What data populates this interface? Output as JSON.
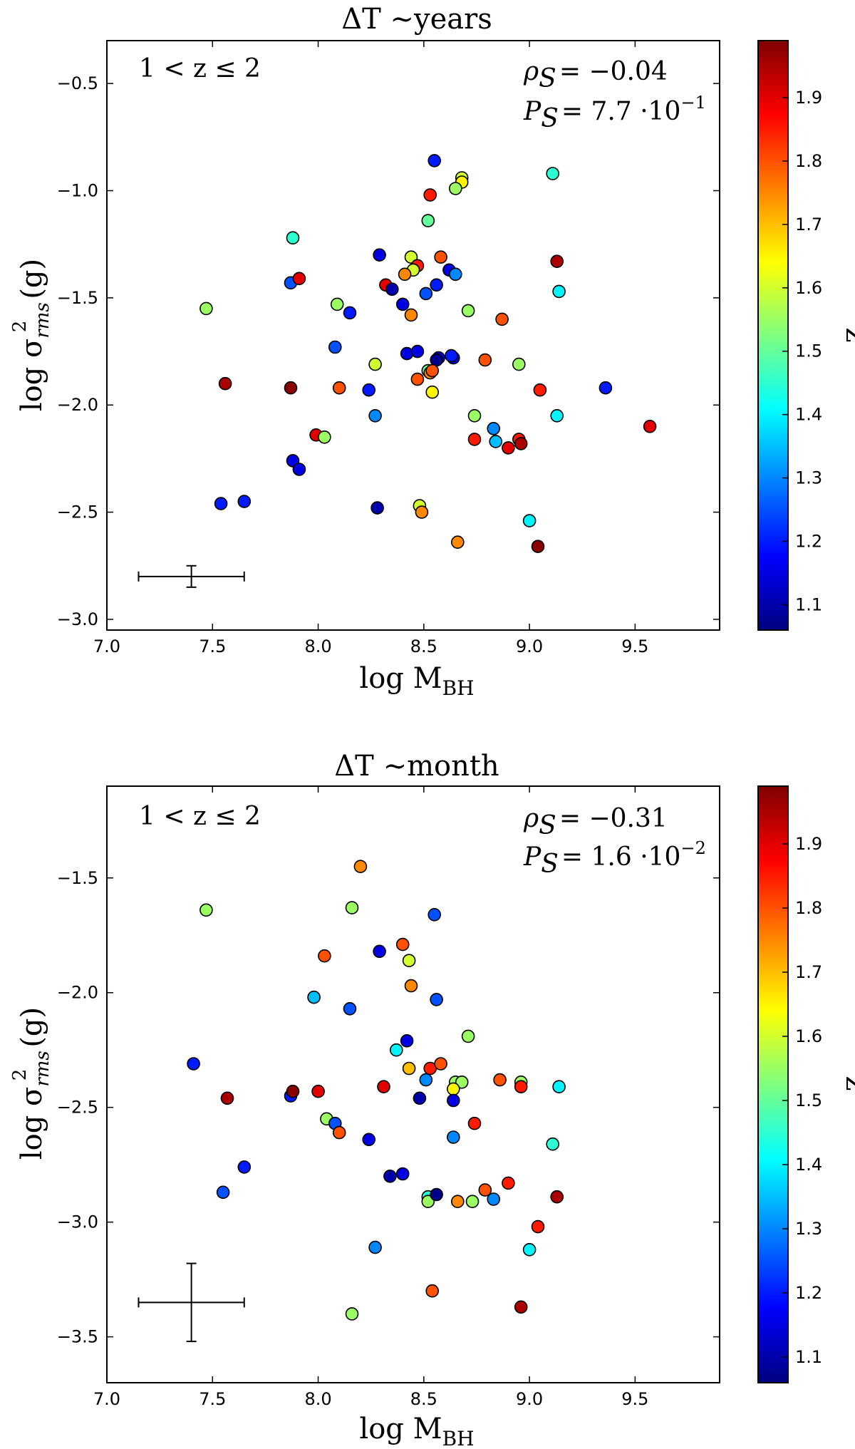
{
  "colorbar": {
    "label": "z",
    "range": [
      1.06,
      1.99
    ],
    "ticks": [
      "1.1",
      "1.2",
      "1.3",
      "1.4",
      "1.5",
      "1.6",
      "1.7",
      "1.8",
      "1.9"
    ],
    "tick_values": [
      1.1,
      1.2,
      1.3,
      1.4,
      1.5,
      1.6,
      1.7,
      1.8,
      1.9
    ],
    "colormap": [
      "#00007f",
      "#0000ff",
      "#007fff",
      "#00ffff",
      "#7fff7f",
      "#ffff00",
      "#ff7f00",
      "#ff0000",
      "#7f0000"
    ]
  },
  "chart_data": [
    {
      "type": "scatter",
      "title": "ΔT ∼years",
      "title_delta": "Δ",
      "title_main": "T ∼years",
      "xlabel": "log M",
      "xlabel_sub": "BH",
      "ylabel_prefix": "log σ",
      "ylabel_sub": "rms",
      "ylabel_sup": "2",
      "ylabel_suffix": "(g)",
      "xlim": [
        7.0,
        9.9
      ],
      "ylim": [
        -3.05,
        -0.3
      ],
      "xticks": [
        "7.0",
        "7.5",
        "8.0",
        "8.5",
        "9.0",
        "9.5"
      ],
      "xtick_values": [
        7.0,
        7.5,
        8.0,
        8.5,
        9.0,
        9.5
      ],
      "yticks": [
        "−3.0",
        "−2.5",
        "−2.0",
        "−1.5",
        "−1.0",
        "−0.5"
      ],
      "ytick_values": [
        -3.0,
        -2.5,
        -2.0,
        -1.5,
        -1.0,
        -0.5
      ],
      "annotation_left": "1  < z  ≤ 2",
      "rho_label": "ρ",
      "rho_sub": "S",
      "rho_value": "= −0.04",
      "p_label": "P",
      "p_sub": "S",
      "p_value": "= 7.7 ·10",
      "p_exp": "−1",
      "error_bar": {
        "x": 7.4,
        "y": -2.8,
        "xerr": 0.25,
        "yerr": 0.05
      },
      "points": [
        {
          "x": 8.55,
          "y": -0.86,
          "z": 1.2
        },
        {
          "x": 8.68,
          "y": -0.94,
          "z": 1.6
        },
        {
          "x": 8.68,
          "y": -0.96,
          "z": 1.65
        },
        {
          "x": 8.65,
          "y": -0.99,
          "z": 1.55
        },
        {
          "x": 8.53,
          "y": -1.02,
          "z": 1.85
        },
        {
          "x": 9.11,
          "y": -0.92,
          "z": 1.45
        },
        {
          "x": 7.88,
          "y": -1.22,
          "z": 1.45
        },
        {
          "x": 8.52,
          "y": -1.14,
          "z": 1.5
        },
        {
          "x": 8.29,
          "y": -1.3,
          "z": 1.15
        },
        {
          "x": 8.44,
          "y": -1.31,
          "z": 1.6
        },
        {
          "x": 8.58,
          "y": -1.31,
          "z": 1.8
        },
        {
          "x": 9.13,
          "y": -1.33,
          "z": 1.95
        },
        {
          "x": 8.47,
          "y": -1.35,
          "z": 1.85
        },
        {
          "x": 8.45,
          "y": -1.37,
          "z": 1.6
        },
        {
          "x": 8.41,
          "y": -1.39,
          "z": 1.75
        },
        {
          "x": 8.62,
          "y": -1.37,
          "z": 1.15
        },
        {
          "x": 8.65,
          "y": -1.39,
          "z": 1.3
        },
        {
          "x": 7.87,
          "y": -1.43,
          "z": 1.25
        },
        {
          "x": 7.91,
          "y": -1.41,
          "z": 1.9
        },
        {
          "x": 8.32,
          "y": -1.44,
          "z": 1.9
        },
        {
          "x": 8.35,
          "y": -1.46,
          "z": 1.1
        },
        {
          "x": 8.51,
          "y": -1.48,
          "z": 1.25
        },
        {
          "x": 8.56,
          "y": -1.44,
          "z": 1.2
        },
        {
          "x": 9.14,
          "y": -1.47,
          "z": 1.4
        },
        {
          "x": 7.47,
          "y": -1.55,
          "z": 1.55
        },
        {
          "x": 8.09,
          "y": -1.53,
          "z": 1.55
        },
        {
          "x": 8.4,
          "y": -1.53,
          "z": 1.15
        },
        {
          "x": 8.15,
          "y": -1.57,
          "z": 1.2
        },
        {
          "x": 8.44,
          "y": -1.58,
          "z": 1.75
        },
        {
          "x": 8.71,
          "y": -1.56,
          "z": 1.55
        },
        {
          "x": 8.87,
          "y": -1.6,
          "z": 1.8
        },
        {
          "x": 8.08,
          "y": -1.73,
          "z": 1.25
        },
        {
          "x": 8.42,
          "y": -1.76,
          "z": 1.15
        },
        {
          "x": 8.47,
          "y": -1.75,
          "z": 1.15
        },
        {
          "x": 8.57,
          "y": -1.78,
          "z": 1.15
        },
        {
          "x": 8.56,
          "y": -1.79,
          "z": 1.07
        },
        {
          "x": 8.64,
          "y": -1.78,
          "z": 1.15
        },
        {
          "x": 8.63,
          "y": -1.77,
          "z": 1.2
        },
        {
          "x": 8.79,
          "y": -1.79,
          "z": 1.8
        },
        {
          "x": 8.27,
          "y": -1.81,
          "z": 1.6
        },
        {
          "x": 8.52,
          "y": -1.84,
          "z": 1.5
        },
        {
          "x": 8.53,
          "y": -1.85,
          "z": 1.75
        },
        {
          "x": 8.47,
          "y": -1.88,
          "z": 1.8
        },
        {
          "x": 8.54,
          "y": -1.84,
          "z": 1.8
        },
        {
          "x": 8.95,
          "y": -1.81,
          "z": 1.55
        },
        {
          "x": 7.56,
          "y": -1.9,
          "z": 1.95
        },
        {
          "x": 7.87,
          "y": -1.92,
          "z": 1.98
        },
        {
          "x": 8.1,
          "y": -1.92,
          "z": 1.8
        },
        {
          "x": 8.24,
          "y": -1.93,
          "z": 1.2
        },
        {
          "x": 8.54,
          "y": -1.94,
          "z": 1.65
        },
        {
          "x": 9.05,
          "y": -1.93,
          "z": 1.85
        },
        {
          "x": 9.36,
          "y": -1.92,
          "z": 1.2
        },
        {
          "x": 8.27,
          "y": -2.05,
          "z": 1.3
        },
        {
          "x": 8.74,
          "y": -2.05,
          "z": 1.55
        },
        {
          "x": 9.13,
          "y": -2.05,
          "z": 1.4
        },
        {
          "x": 8.83,
          "y": -2.11,
          "z": 1.3
        },
        {
          "x": 9.57,
          "y": -2.1,
          "z": 1.9
        },
        {
          "x": 7.99,
          "y": -2.14,
          "z": 1.9
        },
        {
          "x": 8.03,
          "y": -2.15,
          "z": 1.55
        },
        {
          "x": 8.74,
          "y": -2.16,
          "z": 1.85
        },
        {
          "x": 8.84,
          "y": -2.17,
          "z": 1.35
        },
        {
          "x": 8.95,
          "y": -2.16,
          "z": 1.85
        },
        {
          "x": 8.96,
          "y": -2.18,
          "z": 1.95
        },
        {
          "x": 8.9,
          "y": -2.2,
          "z": 1.9
        },
        {
          "x": 7.88,
          "y": -2.26,
          "z": 1.15
        },
        {
          "x": 7.91,
          "y": -2.3,
          "z": 1.15
        },
        {
          "x": 7.54,
          "y": -2.46,
          "z": 1.2
        },
        {
          "x": 7.65,
          "y": -2.45,
          "z": 1.2
        },
        {
          "x": 8.28,
          "y": -2.48,
          "z": 1.1
        },
        {
          "x": 8.48,
          "y": -2.47,
          "z": 1.6
        },
        {
          "x": 8.49,
          "y": -2.5,
          "z": 1.75
        },
        {
          "x": 8.66,
          "y": -2.64,
          "z": 1.75
        },
        {
          "x": 9.0,
          "y": -2.54,
          "z": 1.4
        },
        {
          "x": 9.04,
          "y": -2.66,
          "z": 1.98
        }
      ]
    },
    {
      "type": "scatter",
      "title": "ΔT ∼month",
      "title_delta": "Δ",
      "title_main": "T ∼month",
      "xlabel": "log M",
      "xlabel_sub": "BH",
      "ylabel_prefix": "log σ",
      "ylabel_sub": "rms",
      "ylabel_sup": "2",
      "ylabel_suffix": "(g)",
      "xlim": [
        7.0,
        9.9
      ],
      "ylim": [
        -3.7,
        -1.1
      ],
      "xticks": [
        "7.0",
        "7.5",
        "8.0",
        "8.5",
        "9.0",
        "9.5"
      ],
      "xtick_values": [
        7.0,
        7.5,
        8.0,
        8.5,
        9.0,
        9.5
      ],
      "yticks": [
        "−3.5",
        "−3.0",
        "−2.5",
        "−2.0",
        "−1.5"
      ],
      "ytick_values": [
        -3.5,
        -3.0,
        -2.5,
        -2.0,
        -1.5
      ],
      "annotation_left": "1  < z  ≤ 2",
      "rho_label": "ρ",
      "rho_sub": "S",
      "rho_value": "= −0.31",
      "p_label": "P",
      "p_sub": "S",
      "p_value": "= 1.6 ·10",
      "p_exp": "−2",
      "error_bar": {
        "x": 7.4,
        "y": -3.35,
        "xerr": 0.25,
        "yerr": 0.17
      },
      "points": [
        {
          "x": 8.2,
          "y": -1.45,
          "z": 1.75
        },
        {
          "x": 7.47,
          "y": -1.64,
          "z": 1.55
        },
        {
          "x": 8.16,
          "y": -1.63,
          "z": 1.55
        },
        {
          "x": 8.55,
          "y": -1.66,
          "z": 1.25
        },
        {
          "x": 8.4,
          "y": -1.79,
          "z": 1.8
        },
        {
          "x": 8.29,
          "y": -1.82,
          "z": 1.15
        },
        {
          "x": 8.03,
          "y": -1.84,
          "z": 1.8
        },
        {
          "x": 8.43,
          "y": -1.86,
          "z": 1.6
        },
        {
          "x": 8.44,
          "y": -1.97,
          "z": 1.75
        },
        {
          "x": 7.98,
          "y": -2.02,
          "z": 1.35
        },
        {
          "x": 8.15,
          "y": -2.07,
          "z": 1.25
        },
        {
          "x": 8.56,
          "y": -2.03,
          "z": 1.25
        },
        {
          "x": 8.71,
          "y": -2.19,
          "z": 1.55
        },
        {
          "x": 8.42,
          "y": -2.21,
          "z": 1.15
        },
        {
          "x": 8.37,
          "y": -2.25,
          "z": 1.4
        },
        {
          "x": 7.41,
          "y": -2.31,
          "z": 1.2
        },
        {
          "x": 8.43,
          "y": -2.33,
          "z": 1.7
        },
        {
          "x": 8.53,
          "y": -2.33,
          "z": 1.85
        },
        {
          "x": 8.58,
          "y": -2.31,
          "z": 1.8
        },
        {
          "x": 8.51,
          "y": -2.38,
          "z": 1.3
        },
        {
          "x": 8.65,
          "y": -2.39,
          "z": 1.55
        },
        {
          "x": 8.68,
          "y": -2.39,
          "z": 1.55
        },
        {
          "x": 8.64,
          "y": -2.42,
          "z": 1.65
        },
        {
          "x": 8.86,
          "y": -2.38,
          "z": 1.8
        },
        {
          "x": 8.96,
          "y": -2.39,
          "z": 1.55
        },
        {
          "x": 8.96,
          "y": -2.41,
          "z": 1.85
        },
        {
          "x": 9.14,
          "y": -2.41,
          "z": 1.4
        },
        {
          "x": 7.57,
          "y": -2.46,
          "z": 1.95
        },
        {
          "x": 7.87,
          "y": -2.45,
          "z": 1.2
        },
        {
          "x": 7.88,
          "y": -2.43,
          "z": 1.98
        },
        {
          "x": 8.0,
          "y": -2.43,
          "z": 1.9
        },
        {
          "x": 8.31,
          "y": -2.41,
          "z": 1.9
        },
        {
          "x": 8.48,
          "y": -2.46,
          "z": 1.1
        },
        {
          "x": 8.64,
          "y": -2.47,
          "z": 1.15
        },
        {
          "x": 8.04,
          "y": -2.55,
          "z": 1.55
        },
        {
          "x": 8.08,
          "y": -2.57,
          "z": 1.25
        },
        {
          "x": 8.74,
          "y": -2.57,
          "z": 1.85
        },
        {
          "x": 8.1,
          "y": -2.61,
          "z": 1.8
        },
        {
          "x": 8.24,
          "y": -2.64,
          "z": 1.15
        },
        {
          "x": 8.64,
          "y": -2.63,
          "z": 1.3
        },
        {
          "x": 9.11,
          "y": -2.66,
          "z": 1.45
        },
        {
          "x": 7.65,
          "y": -2.76,
          "z": 1.2
        },
        {
          "x": 7.55,
          "y": -2.87,
          "z": 1.25
        },
        {
          "x": 8.34,
          "y": -2.8,
          "z": 1.1
        },
        {
          "x": 8.4,
          "y": -2.79,
          "z": 1.15
        },
        {
          "x": 8.52,
          "y": -2.89,
          "z": 1.45
        },
        {
          "x": 8.52,
          "y": -2.91,
          "z": 1.55
        },
        {
          "x": 8.56,
          "y": -2.88,
          "z": 1.07
        },
        {
          "x": 8.66,
          "y": -2.91,
          "z": 1.75
        },
        {
          "x": 8.73,
          "y": -2.91,
          "z": 1.55
        },
        {
          "x": 8.79,
          "y": -2.86,
          "z": 1.8
        },
        {
          "x": 8.83,
          "y": -2.9,
          "z": 1.3
        },
        {
          "x": 8.9,
          "y": -2.83,
          "z": 1.85
        },
        {
          "x": 9.13,
          "y": -2.89,
          "z": 1.95
        },
        {
          "x": 9.04,
          "y": -3.02,
          "z": 1.85
        },
        {
          "x": 8.27,
          "y": -3.11,
          "z": 1.3
        },
        {
          "x": 9.0,
          "y": -3.12,
          "z": 1.4
        },
        {
          "x": 8.54,
          "y": -3.3,
          "z": 1.8
        },
        {
          "x": 8.16,
          "y": -3.4,
          "z": 1.55
        },
        {
          "x": 8.96,
          "y": -3.37,
          "z": 1.95
        }
      ]
    }
  ]
}
